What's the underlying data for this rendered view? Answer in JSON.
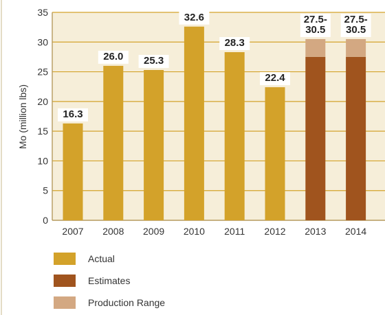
{
  "chart_data": {
    "type": "bar",
    "categories": [
      "2007",
      "2008",
      "2009",
      "2010",
      "2011",
      "2012",
      "2013",
      "2014"
    ],
    "ylabel": "Mo (million lbs)",
    "ylim": [
      0,
      35
    ],
    "yticks": [
      "0",
      "5",
      "10",
      "15",
      "20",
      "25",
      "30",
      "35"
    ],
    "grid": true,
    "series": [
      {
        "name": "Actual",
        "values": [
          16.3,
          26.0,
          25.3,
          32.6,
          28.3,
          22.4,
          null,
          null
        ]
      },
      {
        "name": "Estimates",
        "values": [
          null,
          null,
          null,
          null,
          null,
          null,
          27.5,
          27.5
        ]
      },
      {
        "name": "Production Range",
        "values": [
          null,
          null,
          null,
          null,
          null,
          null,
          3.0,
          3.0
        ]
      }
    ],
    "data_labels": [
      [
        "16.3"
      ],
      [
        "26.0"
      ],
      [
        "25.3"
      ],
      [
        "32.6"
      ],
      [
        "28.3"
      ],
      [
        "22.4"
      ],
      [
        "27.5-",
        "30.5"
      ],
      [
        "27.5-",
        "30.5"
      ]
    ],
    "colors": {
      "actual": "#d3a22a",
      "estimates": "#a0541e",
      "range": "#d3a882",
      "panel": "#f6eed9",
      "gridline": "#d3a22a",
      "axis": "#b59a5e"
    },
    "legend": [
      "Actual",
      "Estimates",
      "Production Range"
    ],
    "legend_position": "bottom-left"
  }
}
